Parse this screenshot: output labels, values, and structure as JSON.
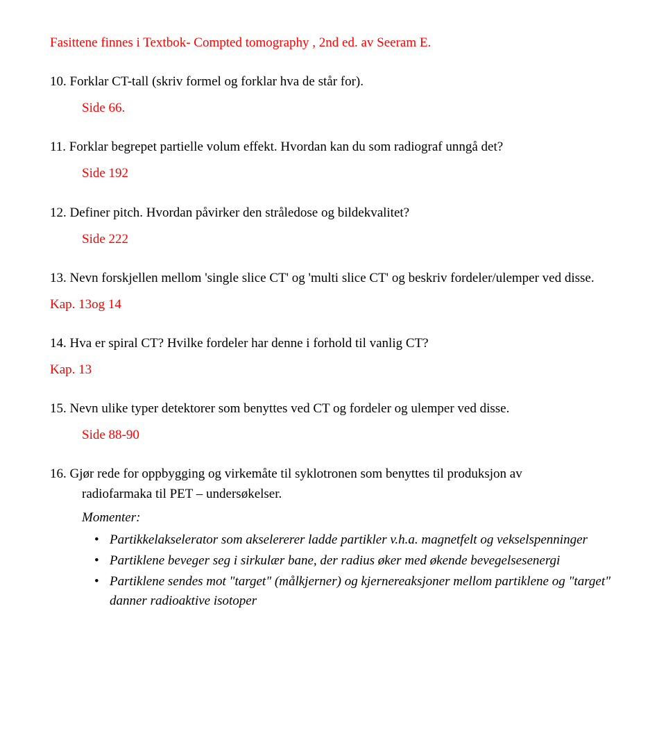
{
  "title": "Fasittene finnes i Textbok- Compted tomography , 2nd ed.  av Seeram E.",
  "q10": "10. Forklar CT-tall (skriv formel og forklar hva de står for).",
  "r10": "Side 66.",
  "q11": "11. Forklar begrepet partielle volum effekt. Hvordan kan du som radiograf unngå det?",
  "r11": "Side  192",
  "q12": "12. Definer pitch. Hvordan påvirker den stråledose og bildekvalitet?",
  "r12": "Side  222",
  "q13": "13. Nevn forskjellen mellom 'single slice CT' og 'multi slice CT' og beskriv fordeler/ulemper ved disse.",
  "r13": "Kap. 13og 14",
  "q14": "14. Hva er spiral CT? Hvilke fordeler har denne i forhold til vanlig CT?",
  "r14": "Kap. 13",
  "q15": "15. Nevn ulike typer detektorer som benyttes ved CT og fordeler og ulemper ved disse.",
  "r15": "Side 88-90",
  "q16a": "16. Gjør rede for oppbygging og virkemåte til syklotronen som benyttes til produksjon av",
  "q16b": "radiofarmaka til PET – undersøkelser.",
  "moment": "Momenter:",
  "b1": "Partikkelakselerator som akselererer ladde partikler v.h.a. magnetfelt og vekselspenninger",
  "b2": "Partiklene beveger seg i sirkulær bane, der radius øker med økende bevegelsesenergi",
  "b3": "Partiklene sendes mot \"target\" (målkjerner) og kjernereaksjoner mellom partiklene og \"target\" danner  radioaktive isotoper"
}
